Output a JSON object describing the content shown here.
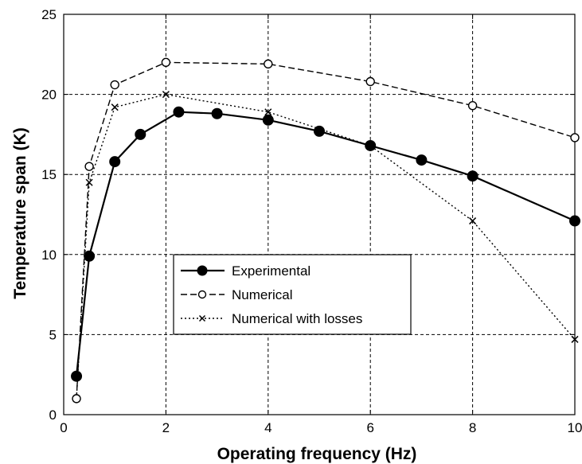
{
  "chart_data": {
    "type": "line",
    "title": "",
    "xlabel": "Operating frequency (Hz)",
    "ylabel": "Temperature span (K)",
    "xlim": [
      0,
      10
    ],
    "ylim": [
      0,
      25
    ],
    "xticks": [
      0,
      2,
      4,
      6,
      8,
      10
    ],
    "yticks": [
      0,
      5,
      10,
      15,
      20,
      25
    ],
    "grid": true,
    "legend_position": "center-left",
    "series": [
      {
        "name": "Experimental",
        "line_style": "solid",
        "marker": "filled-circle",
        "color": "#000000",
        "x": [
          0.25,
          0.5,
          1,
          1.5,
          2.25,
          3,
          4,
          5,
          6,
          7,
          8,
          10
        ],
        "y": [
          2.4,
          9.9,
          15.8,
          17.5,
          18.9,
          18.8,
          18.4,
          17.7,
          16.8,
          15.9,
          14.9,
          12.1
        ]
      },
      {
        "name": "Numerical",
        "line_style": "dashed",
        "marker": "open-circle",
        "color": "#000000",
        "x": [
          0.25,
          0.5,
          1,
          2,
          4,
          6,
          8,
          10
        ],
        "y": [
          1.0,
          15.5,
          20.6,
          22.0,
          21.9,
          20.8,
          19.3,
          17.3
        ]
      },
      {
        "name": "Numerical with losses",
        "line_style": "dotted",
        "marker": "x",
        "color": "#000000",
        "x": [
          0.25,
          0.5,
          1,
          2,
          4,
          6,
          8,
          10
        ],
        "y": [
          1.0,
          14.5,
          19.2,
          20.0,
          18.9,
          16.8,
          12.1,
          4.7
        ]
      }
    ]
  }
}
